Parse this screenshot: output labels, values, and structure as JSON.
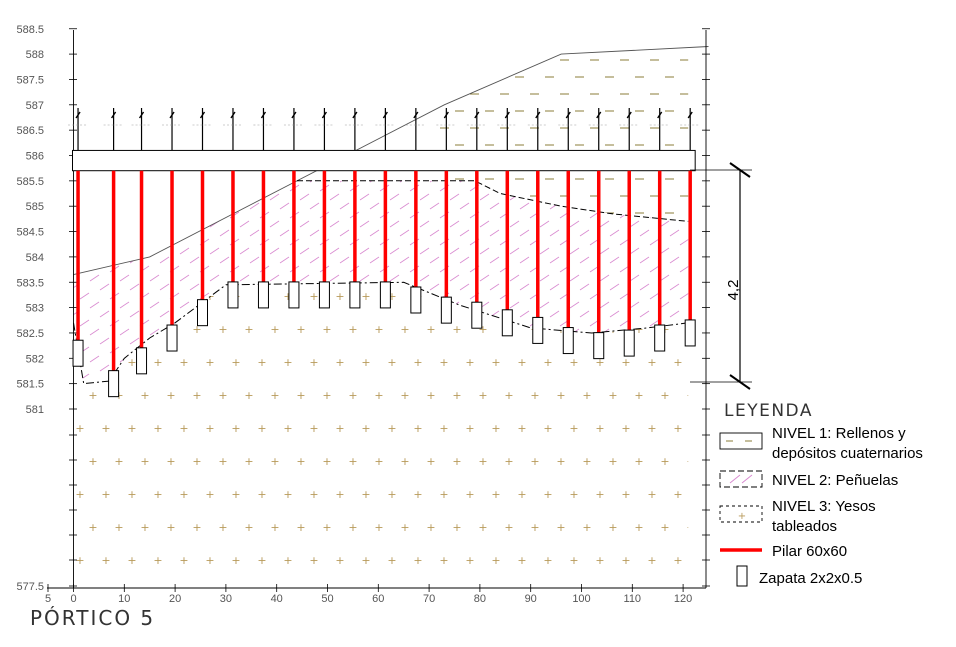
{
  "title": "PÓRTICO 5",
  "dimension_label": "4,2",
  "legend": {
    "heading": "LEYENDA",
    "items": [
      {
        "lines": [
          "NIVEL 1: Rellenos y",
          "depósitos cuaternarios"
        ],
        "kind": "nivel1"
      },
      {
        "lines": [
          "NIVEL 2: Peñuelas"
        ],
        "kind": "nivel2"
      },
      {
        "lines": [
          "NIVEL 3: Yesos",
          "tableados"
        ],
        "kind": "nivel3"
      },
      {
        "lines": [
          "Pilar 60x60"
        ],
        "kind": "pilar"
      },
      {
        "lines": [
          "Zapata 2x2x0.5"
        ],
        "kind": "zapata"
      }
    ]
  },
  "colors": {
    "pilar": "#ff0000",
    "nivel1_marks": "#8b7d3a",
    "nivel2_marks": "#d98ad0",
    "nivel3_marks": "#b89a5a",
    "axis": "#555555"
  },
  "chart_data": {
    "type": "cross-section",
    "x_ticks": [
      "5",
      "0",
      "10",
      "20",
      "30",
      "40",
      "50",
      "60",
      "70",
      "80",
      "90",
      "100",
      "110",
      "120"
    ],
    "y_ticks": [
      "588.5",
      "588",
      "587.5",
      "587",
      "586.5",
      "586",
      "585.5",
      "585",
      "584.5",
      "584",
      "583.5",
      "583",
      "582.5",
      "582",
      "581.5",
      "581",
      "577.5"
    ],
    "surface_profile": [
      [
        0,
        583.65
      ],
      [
        15,
        584
      ],
      [
        73,
        587
      ],
      [
        96,
        588
      ],
      [
        125,
        588.15
      ]
    ],
    "nivel2_top": [
      [
        44,
        585.5
      ],
      [
        79,
        585.5
      ],
      [
        84,
        585.25
      ],
      [
        96,
        585
      ],
      [
        106,
        584.85
      ],
      [
        121,
        584.7
      ]
    ],
    "nivel3_top": [
      [
        0,
        582.7
      ],
      [
        2,
        581.5
      ],
      [
        7,
        581.55
      ],
      [
        10,
        582
      ],
      [
        15,
        582.4
      ],
      [
        20,
        582.7
      ],
      [
        30,
        583.45
      ],
      [
        65,
        583.5
      ],
      [
        76,
        583.05
      ],
      [
        90,
        582.6
      ],
      [
        102,
        582.5
      ],
      [
        113,
        582.6
      ],
      [
        121,
        582.7
      ]
    ],
    "slab_top": 586.1,
    "slab_bottom": 585.7,
    "pillars": [
      {
        "x": 0.5,
        "base": 582.1
      },
      {
        "x": 7.5,
        "base": 581.5
      },
      {
        "x": 13,
        "base": 581.95
      },
      {
        "x": 19,
        "base": 582.4
      },
      {
        "x": 25,
        "base": 582.9
      },
      {
        "x": 31,
        "base": 583.25
      },
      {
        "x": 37,
        "base": 583.25
      },
      {
        "x": 43,
        "base": 583.25
      },
      {
        "x": 49,
        "base": 583.25
      },
      {
        "x": 55,
        "base": 583.25
      },
      {
        "x": 61,
        "base": 583.25
      },
      {
        "x": 67,
        "base": 583.15
      },
      {
        "x": 73,
        "base": 582.95
      },
      {
        "x": 79,
        "base": 582.85
      },
      {
        "x": 85,
        "base": 582.7
      },
      {
        "x": 91,
        "base": 582.55
      },
      {
        "x": 97,
        "base": 582.35
      },
      {
        "x": 103,
        "base": 582.25
      },
      {
        "x": 109,
        "base": 582.3
      },
      {
        "x": 115,
        "base": 582.4
      },
      {
        "x": 121,
        "base": 582.5
      }
    ]
  }
}
